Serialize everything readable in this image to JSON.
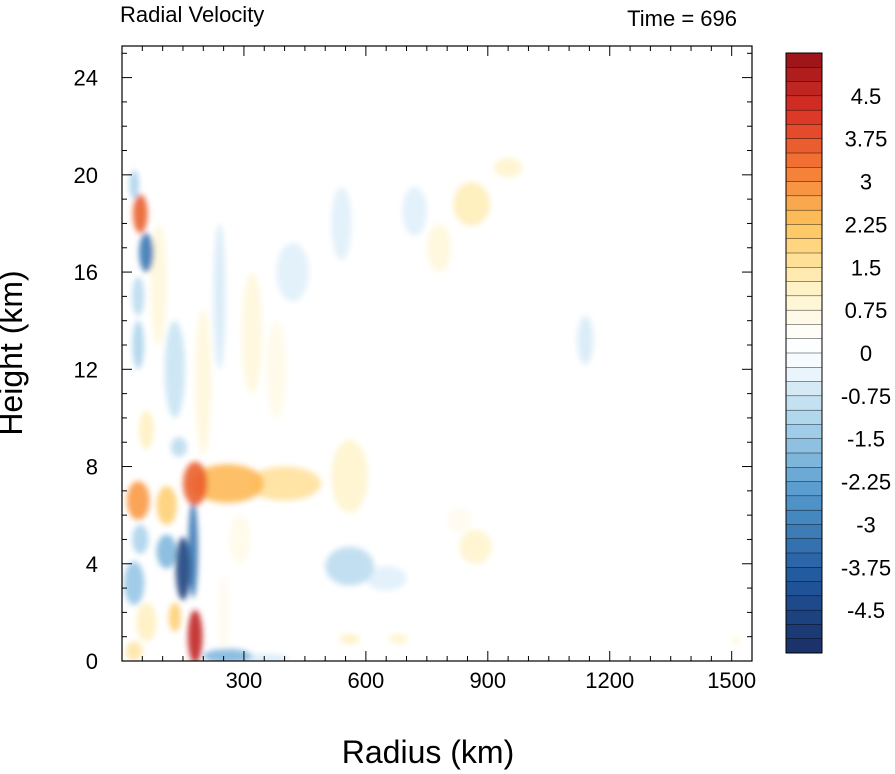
{
  "chart_data": {
    "type": "heatmap",
    "title": "Radial Velocity",
    "time_label": "Time = 696",
    "xlabel": "Radius (km)",
    "ylabel": "Height (km)",
    "xlim": [
      0,
      1550
    ],
    "ylim": [
      0,
      25.3
    ],
    "x_ticks": [
      300,
      600,
      900,
      1200,
      1500
    ],
    "y_ticks": [
      0,
      4,
      8,
      12,
      16,
      20,
      24
    ],
    "colorbar": {
      "min": -5.25,
      "max": 5.25,
      "step": 0.25,
      "labels": [
        "4.5",
        "3.75",
        "3",
        "2.25",
        "1.5",
        "0.75",
        "0",
        "-0.75",
        "-1.5",
        "-2.25",
        "-3",
        "-3.75",
        "-4.5"
      ],
      "label_values": [
        4.5,
        3.75,
        3,
        2.25,
        1.5,
        0.75,
        0,
        -0.75,
        -1.5,
        -2.25,
        -3,
        -3.75,
        -4.5
      ]
    },
    "features": [
      {
        "x": 180,
        "y": 7.3,
        "rx": 30,
        "ry": 0.9,
        "v": 3.6
      },
      {
        "x": 260,
        "y": 7.3,
        "rx": 90,
        "ry": 0.8,
        "v": 2.4
      },
      {
        "x": 400,
        "y": 7.3,
        "rx": 90,
        "ry": 0.7,
        "v": 1.6
      },
      {
        "x": 560,
        "y": 7.6,
        "rx": 45,
        "ry": 1.5,
        "v": 1.0
      },
      {
        "x": 40,
        "y": 6.6,
        "rx": 28,
        "ry": 0.8,
        "v": 2.8
      },
      {
        "x": 110,
        "y": 6.4,
        "rx": 25,
        "ry": 0.8,
        "v": 2.0
      },
      {
        "x": 130,
        "y": 1.8,
        "rx": 15,
        "ry": 0.6,
        "v": 2.0
      },
      {
        "x": 180,
        "y": 1.0,
        "rx": 18,
        "ry": 1.1,
        "v": 4.6
      },
      {
        "x": 60,
        "y": 1.6,
        "rx": 25,
        "ry": 0.8,
        "v": 1.2
      },
      {
        "x": 30,
        "y": 0.4,
        "rx": 20,
        "ry": 0.4,
        "v": 1.5
      },
      {
        "x": 150,
        "y": 3.8,
        "rx": 18,
        "ry": 1.3,
        "v": -4.6
      },
      {
        "x": 175,
        "y": 4.6,
        "rx": 12,
        "ry": 2.0,
        "v": -3.2
      },
      {
        "x": 110,
        "y": 4.5,
        "rx": 25,
        "ry": 0.7,
        "v": -1.8
      },
      {
        "x": 30,
        "y": 3.2,
        "rx": 25,
        "ry": 0.9,
        "v": -1.5
      },
      {
        "x": 45,
        "y": 5.0,
        "rx": 20,
        "ry": 0.6,
        "v": -1.2
      },
      {
        "x": 140,
        "y": 8.8,
        "rx": 20,
        "ry": 0.4,
        "v": -1.0
      },
      {
        "x": 45,
        "y": 18.4,
        "rx": 18,
        "ry": 0.8,
        "v": 3.6
      },
      {
        "x": 60,
        "y": 16.8,
        "rx": 18,
        "ry": 0.8,
        "v": -3.2
      },
      {
        "x": 30,
        "y": 19.6,
        "rx": 12,
        "ry": 0.6,
        "v": -1.2
      },
      {
        "x": 40,
        "y": 15.0,
        "rx": 15,
        "ry": 0.8,
        "v": -1.0
      },
      {
        "x": 40,
        "y": 13.0,
        "rx": 14,
        "ry": 1.0,
        "v": -1.2
      },
      {
        "x": 90,
        "y": 15.5,
        "rx": 20,
        "ry": 2.5,
        "v": 0.8
      },
      {
        "x": 130,
        "y": 12.0,
        "rx": 25,
        "ry": 2.0,
        "v": -0.8
      },
      {
        "x": 200,
        "y": 11.5,
        "rx": 20,
        "ry": 3.0,
        "v": 0.8
      },
      {
        "x": 240,
        "y": 15.0,
        "rx": 15,
        "ry": 3.0,
        "v": -0.6
      },
      {
        "x": 60,
        "y": 9.5,
        "rx": 18,
        "ry": 0.8,
        "v": 1.2
      },
      {
        "x": 320,
        "y": 13.5,
        "rx": 25,
        "ry": 2.5,
        "v": 0.8
      },
      {
        "x": 380,
        "y": 12.0,
        "rx": 25,
        "ry": 2.0,
        "v": 0.6
      },
      {
        "x": 420,
        "y": 16.0,
        "rx": 40,
        "ry": 1.2,
        "v": -0.5
      },
      {
        "x": 540,
        "y": 18.0,
        "rx": 25,
        "ry": 1.5,
        "v": -0.5
      },
      {
        "x": 780,
        "y": 17.0,
        "rx": 30,
        "ry": 1.0,
        "v": 0.8
      },
      {
        "x": 860,
        "y": 18.8,
        "rx": 45,
        "ry": 0.9,
        "v": 1.3
      },
      {
        "x": 950,
        "y": 20.3,
        "rx": 35,
        "ry": 0.4,
        "v": 1.0
      },
      {
        "x": 720,
        "y": 18.5,
        "rx": 30,
        "ry": 1.0,
        "v": -0.5
      },
      {
        "x": 1140,
        "y": 13.2,
        "rx": 20,
        "ry": 1.0,
        "v": -0.6
      },
      {
        "x": 560,
        "y": 3.9,
        "rx": 60,
        "ry": 0.8,
        "v": -1.0
      },
      {
        "x": 650,
        "y": 3.4,
        "rx": 50,
        "ry": 0.5,
        "v": -0.5
      },
      {
        "x": 870,
        "y": 4.7,
        "rx": 40,
        "ry": 0.7,
        "v": 1.0
      },
      {
        "x": 830,
        "y": 5.8,
        "rx": 30,
        "ry": 0.5,
        "v": 0.5
      },
      {
        "x": 260,
        "y": 0.2,
        "rx": 60,
        "ry": 0.3,
        "v": -1.8
      },
      {
        "x": 350,
        "y": 0.1,
        "rx": 60,
        "ry": 0.2,
        "v": -0.6
      },
      {
        "x": 250,
        "y": 2.0,
        "rx": 15,
        "ry": 1.5,
        "v": 0.5
      },
      {
        "x": 290,
        "y": 5.0,
        "rx": 25,
        "ry": 1.0,
        "v": 0.6
      },
      {
        "x": 560,
        "y": 0.9,
        "rx": 25,
        "ry": 0.2,
        "v": 1.2
      },
      {
        "x": 680,
        "y": 0.9,
        "rx": 25,
        "ry": 0.2,
        "v": 1.0
      },
      {
        "x": 1510,
        "y": 0.8,
        "rx": 10,
        "ry": 0.2,
        "v": 0.8
      }
    ]
  }
}
